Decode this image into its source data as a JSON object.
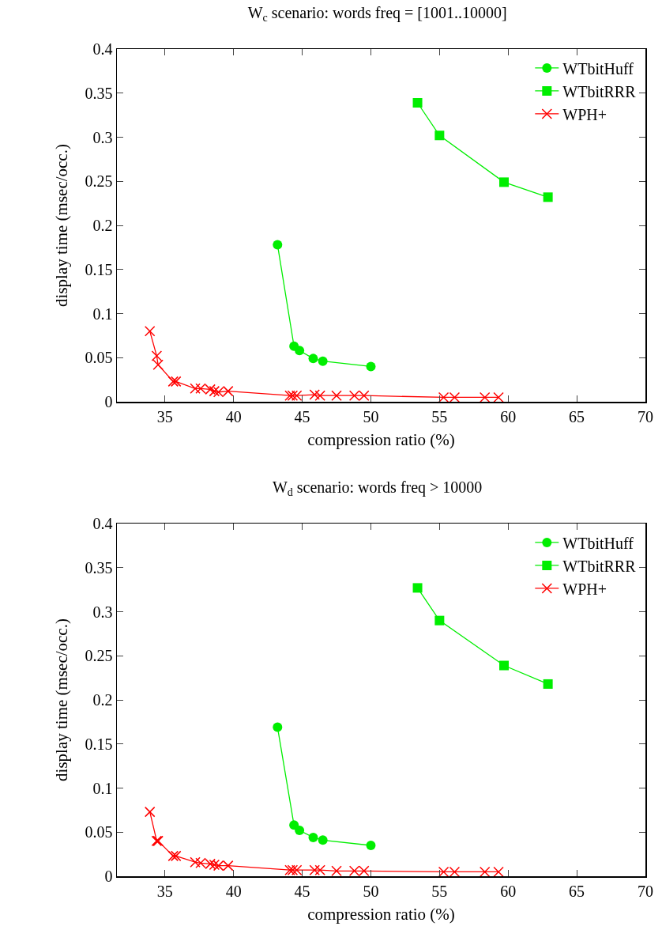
{
  "chart_data": [
    {
      "type": "line",
      "title": "W$_{c}$ scenario: words freq = [1001..10000]",
      "xlabel": "compression ratio (%)",
      "ylabel": "display time (msec/occ.)",
      "xlim": [
        31.5,
        70
      ],
      "xticks": [
        35,
        40,
        45,
        50,
        55,
        60,
        65,
        70
      ],
      "ylim": [
        0,
        0.4
      ],
      "yticks": [
        0,
        0.05,
        0.1,
        0.15,
        0.2,
        0.25,
        0.3,
        0.35,
        0.4
      ],
      "grid": false,
      "legend": "top right",
      "line_style": "solid",
      "series": [
        {
          "name": "WTbitHuff",
          "color": "#00ee00",
          "marker": "circle",
          "x": [
            43.2,
            44.4,
            44.8,
            45.8,
            46.5,
            50.0
          ],
          "values": [
            0.178,
            0.063,
            0.058,
            0.049,
            0.046,
            0.04
          ]
        },
        {
          "name": "WTbitRRR",
          "color": "#00ee00",
          "marker": "square",
          "x": [
            53.4,
            55.0,
            59.7,
            62.9
          ],
          "values": [
            0.339,
            0.302,
            0.249,
            0.232
          ]
        },
        {
          "name": "WPH+",
          "color": "#ff0000",
          "marker": "cross",
          "x": [
            33.9,
            34.4,
            34.5,
            35.6,
            35.8,
            37.2,
            37.6,
            38.3,
            38.6,
            38.9,
            39.6,
            44.1,
            44.3,
            44.6,
            45.9,
            46.3,
            47.5,
            48.8,
            49.5,
            55.3,
            56.1,
            58.3,
            59.3
          ],
          "values": [
            0.08,
            0.052,
            0.042,
            0.023,
            0.023,
            0.015,
            0.015,
            0.014,
            0.012,
            0.011,
            0.012,
            0.007,
            0.007,
            0.007,
            0.008,
            0.007,
            0.007,
            0.007,
            0.007,
            0.005,
            0.005,
            0.005,
            0.005
          ]
        }
      ]
    },
    {
      "type": "line",
      "title": "W$_{d}$ scenario: words freq > 10000",
      "xlabel": "compression ratio (%)",
      "ylabel": "display time (msec/occ.)",
      "xlim": [
        31.5,
        70
      ],
      "xticks": [
        35,
        40,
        45,
        50,
        55,
        60,
        65,
        70
      ],
      "ylim": [
        0,
        0.4
      ],
      "yticks": [
        0,
        0.05,
        0.1,
        0.15,
        0.2,
        0.25,
        0.3,
        0.35,
        0.4
      ],
      "grid": false,
      "legend": "top right",
      "line_style": "solid",
      "series": [
        {
          "name": "WTbitHuff",
          "color": "#00ee00",
          "marker": "circle",
          "x": [
            43.2,
            44.4,
            44.8,
            45.8,
            46.5,
            50.0
          ],
          "values": [
            0.169,
            0.058,
            0.052,
            0.044,
            0.041,
            0.035
          ]
        },
        {
          "name": "WTbitRRR",
          "color": "#00ee00",
          "marker": "square",
          "x": [
            53.4,
            55.0,
            59.7,
            62.9
          ],
          "values": [
            0.327,
            0.29,
            0.239,
            0.218
          ]
        },
        {
          "name": "WPH+",
          "color": "#ff0000",
          "marker": "cross",
          "x": [
            33.9,
            34.4,
            34.5,
            35.6,
            35.8,
            37.2,
            37.6,
            38.3,
            38.6,
            38.9,
            39.6,
            44.1,
            44.3,
            44.6,
            45.9,
            46.3,
            47.5,
            48.8,
            49.5,
            55.3,
            56.1,
            58.3,
            59.3
          ],
          "values": [
            0.073,
            0.04,
            0.04,
            0.023,
            0.023,
            0.016,
            0.015,
            0.014,
            0.013,
            0.012,
            0.012,
            0.007,
            0.007,
            0.007,
            0.007,
            0.007,
            0.006,
            0.006,
            0.006,
            0.005,
            0.005,
            0.005,
            0.005
          ]
        }
      ]
    }
  ]
}
